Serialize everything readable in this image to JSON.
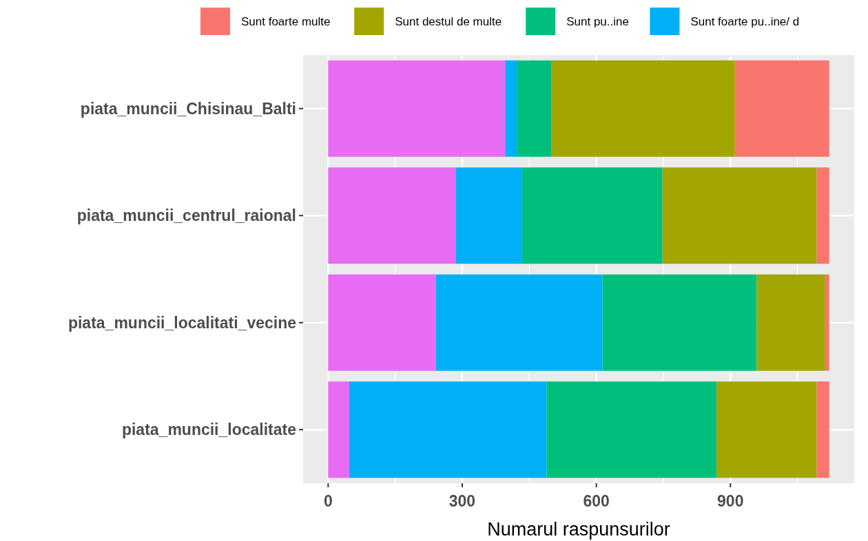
{
  "chart_data": {
    "type": "bar",
    "orientation": "horizontal",
    "stacked": true,
    "xlabel": "Numarul raspunsurilor",
    "categories": [
      "piata_muncii_Chisinau_Balti",
      "piata_muncii_centrul_raional",
      "piata_muncii_localitati_vecine",
      "piata_muncii_localitate"
    ],
    "series": [
      {
        "color": "#e76bf3",
        "values": [
          396,
          286,
          241,
          47
        ]
      },
      {
        "name": "Sunt foarte pu..ine/ d",
        "color": "#00b0f6",
        "values": [
          26,
          148,
          373,
          442
        ]
      },
      {
        "name": "Sunt pu..ine",
        "color": "#00bf7d",
        "values": [
          77,
          314,
          345,
          380
        ]
      },
      {
        "name": "Sunt destul de multe",
        "color": "#a3a500",
        "values": [
          411,
          345,
          153,
          224
        ]
      },
      {
        "name": "Sunt foarte multe",
        "color": "#f8766d",
        "values": [
          211,
          28,
          9,
          28
        ]
      }
    ],
    "xlim": [
      -56,
      1177
    ],
    "xticks": [
      0,
      300,
      600,
      900
    ],
    "grid": true,
    "legend": "top"
  }
}
